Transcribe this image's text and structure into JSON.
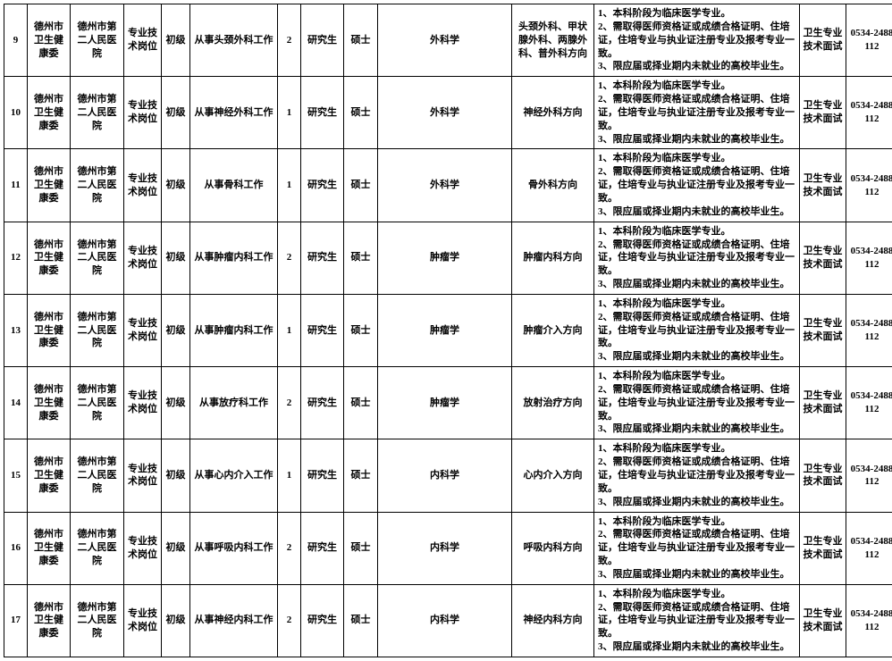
{
  "table": {
    "border_color": "#000000",
    "background_color": "#ffffff",
    "font_size": 11,
    "rows": [
      {
        "idx": "9",
        "org": "德州市卫生健康委",
        "hosp": "德州市第二人民医院",
        "postType": "专业技术岗位",
        "level": "初级",
        "job": "从事头颈外科工作",
        "num": "2",
        "edu": "研究生",
        "degree": "硕士",
        "major": "外科学",
        "direction": "头颈外科、甲状腺外科、两腺外科、普外科方向",
        "req": "1、本科阶段为临床医学专业。\n2、需取得医师资格证或成绩合格证明、住培证，住培专业与执业证注册专业及报考专业一致。\n3、限应届或择业期内未就业的高校毕业生。",
        "exam": "卫生专业技术面试",
        "tel": "0534-2488112"
      },
      {
        "idx": "10",
        "org": "德州市卫生健康委",
        "hosp": "德州市第二人民医院",
        "postType": "专业技术岗位",
        "level": "初级",
        "job": "从事神经外科工作",
        "num": "1",
        "edu": "研究生",
        "degree": "硕士",
        "major": "外科学",
        "direction": "神经外科方向",
        "req": "1、本科阶段为临床医学专业。\n2、需取得医师资格证或成绩合格证明、住培证，住培专业与执业证注册专业及报考专业一致。\n3、限应届或择业期内未就业的高校毕业生。",
        "exam": "卫生专业技术面试",
        "tel": "0534-2488112"
      },
      {
        "idx": "11",
        "org": "德州市卫生健康委",
        "hosp": "德州市第二人民医院",
        "postType": "专业技术岗位",
        "level": "初级",
        "job": "从事骨科工作",
        "num": "1",
        "edu": "研究生",
        "degree": "硕士",
        "major": "外科学",
        "direction": "骨外科方向",
        "req": "1、本科阶段为临床医学专业。\n2、需取得医师资格证或成绩合格证明、住培证，住培专业与执业证注册专业及报考专业一致。\n3、限应届或择业期内未就业的高校毕业生。",
        "exam": "卫生专业技术面试",
        "tel": "0534-2488112"
      },
      {
        "idx": "12",
        "org": "德州市卫生健康委",
        "hosp": "德州市第二人民医院",
        "postType": "专业技术岗位",
        "level": "初级",
        "job": "从事肿瘤内科工作",
        "num": "2",
        "edu": "研究生",
        "degree": "硕士",
        "major": "肿瘤学",
        "direction": "肿瘤内科方向",
        "req": "1、本科阶段为临床医学专业。\n2、需取得医师资格证或成绩合格证明、住培证，住培专业与执业证注册专业及报考专业一致。\n3、限应届或择业期内未就业的高校毕业生。",
        "exam": "卫生专业技术面试",
        "tel": "0534-2488112"
      },
      {
        "idx": "13",
        "org": "德州市卫生健康委",
        "hosp": "德州市第二人民医院",
        "postType": "专业技术岗位",
        "level": "初级",
        "job": "从事肿瘤内科工作",
        "num": "1",
        "edu": "研究生",
        "degree": "硕士",
        "major": "肿瘤学",
        "direction": "肿瘤介入方向",
        "req": "1、本科阶段为临床医学专业。\n2、需取得医师资格证或成绩合格证明、住培证，住培专业与执业证注册专业及报考专业一致。\n3、限应届或择业期内未就业的高校毕业生。",
        "exam": "卫生专业技术面试",
        "tel": "0534-2488112"
      },
      {
        "idx": "14",
        "org": "德州市卫生健康委",
        "hosp": "德州市第二人民医院",
        "postType": "专业技术岗位",
        "level": "初级",
        "job": "从事放疗科工作",
        "num": "2",
        "edu": "研究生",
        "degree": "硕士",
        "major": "肿瘤学",
        "direction": "放射治疗方向",
        "req": "1、本科阶段为临床医学专业。\n2、需取得医师资格证或成绩合格证明、住培证，住培专业与执业证注册专业及报考专业一致。\n3、限应届或择业期内未就业的高校毕业生。",
        "exam": "卫生专业技术面试",
        "tel": "0534-2488112"
      },
      {
        "idx": "15",
        "org": "德州市卫生健康委",
        "hosp": "德州市第二人民医院",
        "postType": "专业技术岗位",
        "level": "初级",
        "job": "从事心内介入工作",
        "num": "1",
        "edu": "研究生",
        "degree": "硕士",
        "major": "内科学",
        "direction": "心内介入方向",
        "req": "1、本科阶段为临床医学专业。\n2、需取得医师资格证或成绩合格证明、住培证，住培专业与执业证注册专业及报考专业一致。\n3、限应届或择业期内未就业的高校毕业生。",
        "exam": "卫生专业技术面试",
        "tel": "0534-2488112"
      },
      {
        "idx": "16",
        "org": "德州市卫生健康委",
        "hosp": "德州市第二人民医院",
        "postType": "专业技术岗位",
        "level": "初级",
        "job": "从事呼吸内科工作",
        "num": "2",
        "edu": "研究生",
        "degree": "硕士",
        "major": "内科学",
        "direction": "呼吸内科方向",
        "req": "1、本科阶段为临床医学专业。\n2、需取得医师资格证或成绩合格证明、住培证，住培专业与执业证注册专业及报考专业一致。\n3、限应届或择业期内未就业的高校毕业生。",
        "exam": "卫生专业技术面试",
        "tel": "0534-2488112"
      },
      {
        "idx": "17",
        "org": "德州市卫生健康委",
        "hosp": "德州市第二人民医院",
        "postType": "专业技术岗位",
        "level": "初级",
        "job": "从事神经内科工作",
        "num": "2",
        "edu": "研究生",
        "degree": "硕士",
        "major": "内科学",
        "direction": "神经内科方向",
        "req": "1、本科阶段为临床医学专业。\n2、需取得医师资格证或成绩合格证明、住培证，住培专业与执业证注册专业及报考专业一致。\n3、限应届或择业期内未就业的高校毕业生。",
        "exam": "卫生专业技术面试",
        "tel": "0534-2488112"
      }
    ]
  }
}
